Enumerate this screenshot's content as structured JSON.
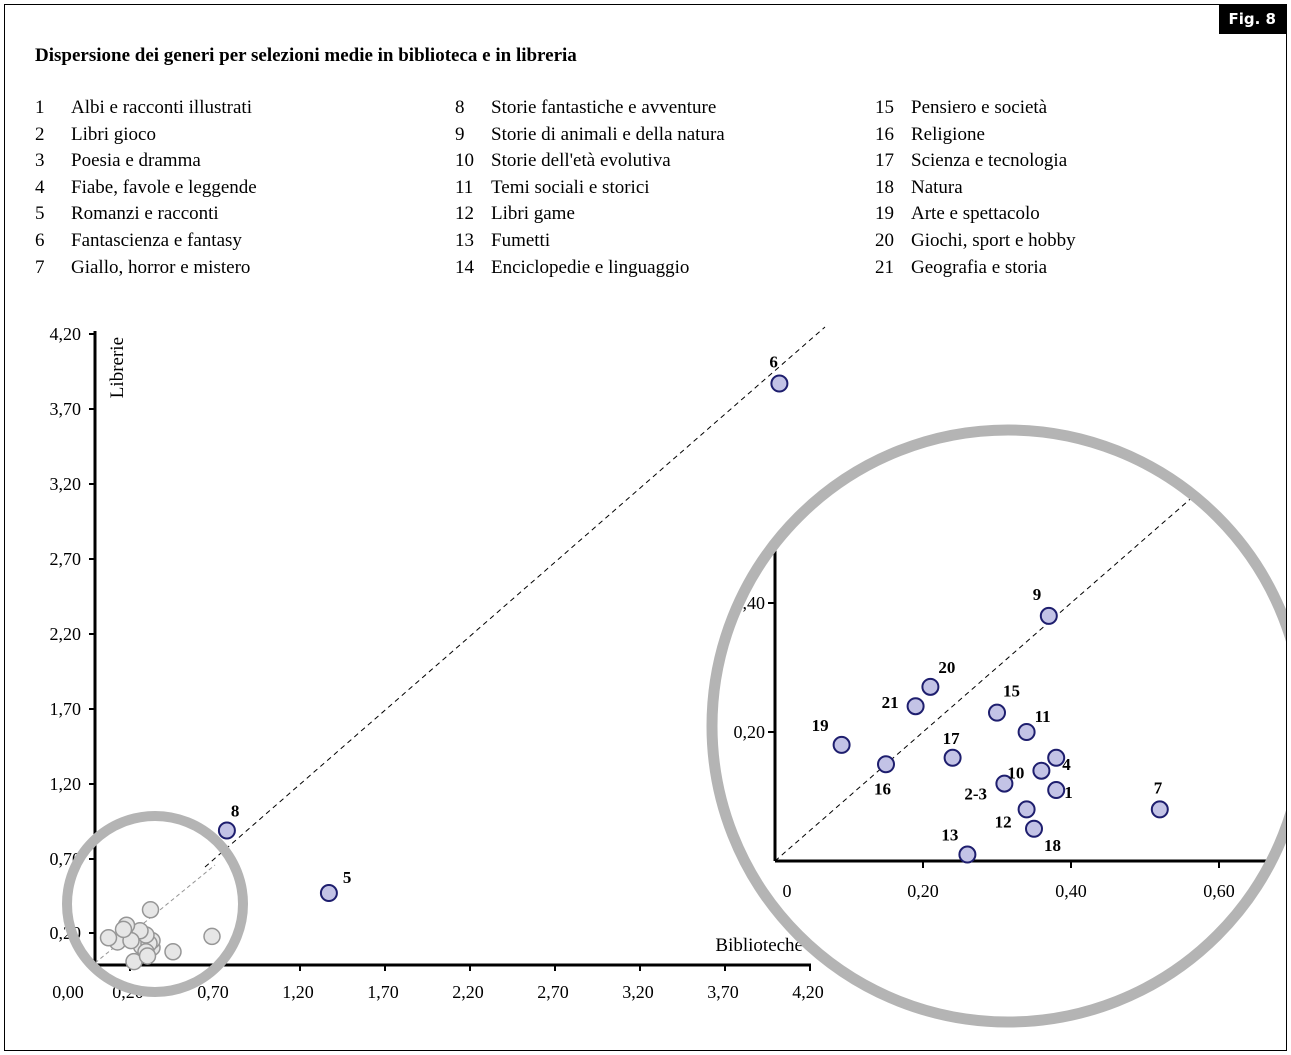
{
  "badge": "Fig. 8",
  "title": "Dispersione dei generi per selezioni medie in biblioteca e in libreria",
  "legend": [
    {
      "num": "1",
      "label": "Albi e racconti illustrati"
    },
    {
      "num": "2",
      "label": "Libri gioco"
    },
    {
      "num": "3",
      "label": "Poesia e dramma"
    },
    {
      "num": "4",
      "label": "Fiabe, favole e leggende"
    },
    {
      "num": "5",
      "label": "Romanzi e racconti"
    },
    {
      "num": "6",
      "label": "Fantascienza e fantasy"
    },
    {
      "num": "7",
      "label": "Giallo, horror e mistero"
    },
    {
      "num": "8",
      "label": "Storie fantastiche e avventure"
    },
    {
      "num": "9",
      "label": "Storie di animali e della natura"
    },
    {
      "num": "10",
      "label": "Storie dell'età evolutiva"
    },
    {
      "num": "11",
      "label": "Temi sociali e storici"
    },
    {
      "num": "12",
      "label": "Libri game"
    },
    {
      "num": "13",
      "label": "Fumetti"
    },
    {
      "num": "14",
      "label": "Enciclopedie e linguaggio"
    },
    {
      "num": "15",
      "label": "Pensiero e società"
    },
    {
      "num": "16",
      "label": "Religione"
    },
    {
      "num": "17",
      "label": "Scienza e tecnologia"
    },
    {
      "num": "18",
      "label": "Natura"
    },
    {
      "num": "19",
      "label": "Arte e spettacolo"
    },
    {
      "num": "20",
      "label": "Giochi, sport e hobby"
    },
    {
      "num": "21",
      "label": "Geografia e storia"
    }
  ],
  "colors": {
    "point_fill": "#c3c3e6",
    "point_stroke": "#1e1e6e",
    "magnifier_ring": "#b4b4b4",
    "faded_point_fill": "#e6e6e6",
    "faded_point_stroke": "#969696"
  },
  "chart_data": [
    {
      "type": "scatter",
      "title": "",
      "xlabel": "Biblioteche",
      "ylabel": "Librerie",
      "xlim": [
        0,
        4.2
      ],
      "ylim": [
        0,
        4.2
      ],
      "x_ticks": [
        "0,00",
        "0,20",
        "0,70",
        "1,20",
        "1,70",
        "2,20",
        "2,70",
        "3,20",
        "3,70",
        "4,20"
      ],
      "y_ticks": [
        "0,20",
        "0,70",
        "1,20",
        "1,70",
        "2,20",
        "2,70",
        "3,20",
        "3,70",
        "4,20"
      ],
      "reference_line": "y = x (dashed)",
      "labeled_points": [
        {
          "label": "6",
          "x": 4.02,
          "y": 3.87
        },
        {
          "label": "8",
          "x": 0.77,
          "y": 0.89
        },
        {
          "label": "5",
          "x": 1.37,
          "y": 0.47
        }
      ],
      "clustered_points_note": "points 1-4, 7, 9-21 shown in magnified view"
    },
    {
      "type": "scatter",
      "title": "",
      "view": "magnified bottom-left region",
      "x_ticks": [
        "0",
        "0,20",
        "0,40",
        "0,60"
      ],
      "y_ticks": [
        "0,20",
        ",40"
      ],
      "reference_line": "y = x (dashed)",
      "points": [
        {
          "label": "1",
          "x": 0.38,
          "y": 0.11
        },
        {
          "label": "2-3",
          "x": 0.31,
          "y": 0.12
        },
        {
          "label": "4",
          "x": 0.38,
          "y": 0.16
        },
        {
          "label": "7",
          "x": 0.52,
          "y": 0.08
        },
        {
          "label": "9",
          "x": 0.37,
          "y": 0.38
        },
        {
          "label": "10",
          "x": 0.36,
          "y": 0.14
        },
        {
          "label": "11",
          "x": 0.34,
          "y": 0.2
        },
        {
          "label": "12",
          "x": 0.34,
          "y": 0.08
        },
        {
          "label": "13",
          "x": 0.26,
          "y": 0.01
        },
        {
          "label": "15",
          "x": 0.3,
          "y": 0.23
        },
        {
          "label": "16",
          "x": 0.15,
          "y": 0.15
        },
        {
          "label": "17",
          "x": 0.24,
          "y": 0.16
        },
        {
          "label": "18",
          "x": 0.35,
          "y": 0.05
        },
        {
          "label": "19",
          "x": 0.09,
          "y": 0.18
        },
        {
          "label": "20",
          "x": 0.21,
          "y": 0.27
        },
        {
          "label": "21",
          "x": 0.19,
          "y": 0.24
        }
      ]
    }
  ]
}
